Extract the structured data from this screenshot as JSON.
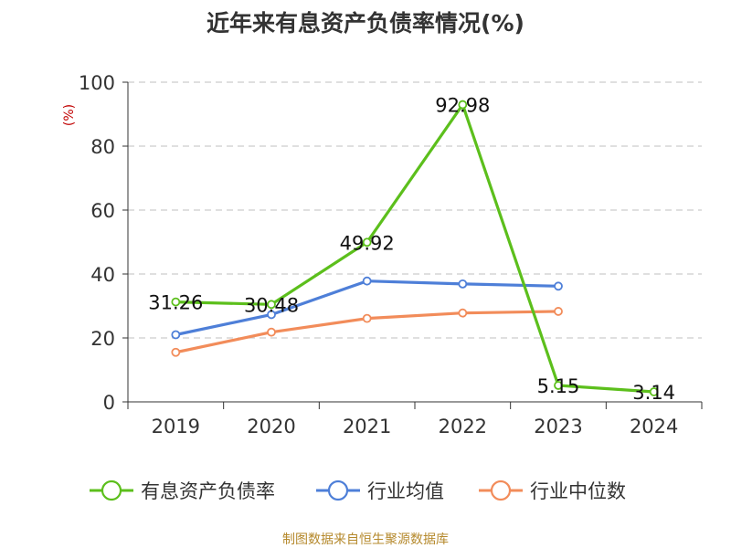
{
  "title": "近年来有息资产负债率情况(%)",
  "source": "制图数据来自恒生聚源数据库",
  "colors": {
    "series1": "#5cbf1c",
    "series2": "#4e7fd8",
    "series3": "#f28c5a",
    "ylabel": "#c00000",
    "grid": "#cccccc",
    "axis": "#333333"
  },
  "chart_data": {
    "type": "line",
    "title": "近年来有息资产负债率情况(%)",
    "ylabel": "(%)",
    "xlabel": "",
    "ylim": [
      0,
      100
    ],
    "yticks": [
      0,
      20,
      40,
      60,
      80,
      100
    ],
    "categories": [
      "2019",
      "2020",
      "2021",
      "2022",
      "2023",
      "2024"
    ],
    "grid": true,
    "legend_position": "bottom",
    "series": [
      {
        "name": "有息资产负债率",
        "values": [
          31.26,
          30.48,
          49.92,
          92.98,
          5.15,
          3.14
        ],
        "labels": [
          "31.26",
          "30.48",
          "49.92",
          "92.98",
          "5.15",
          "3.14"
        ]
      },
      {
        "name": "行业均值",
        "values": [
          21.0,
          27.3,
          37.8,
          36.9,
          36.2,
          null
        ]
      },
      {
        "name": "行业中位数",
        "values": [
          15.5,
          21.8,
          26.1,
          27.8,
          28.3,
          null
        ]
      }
    ]
  }
}
